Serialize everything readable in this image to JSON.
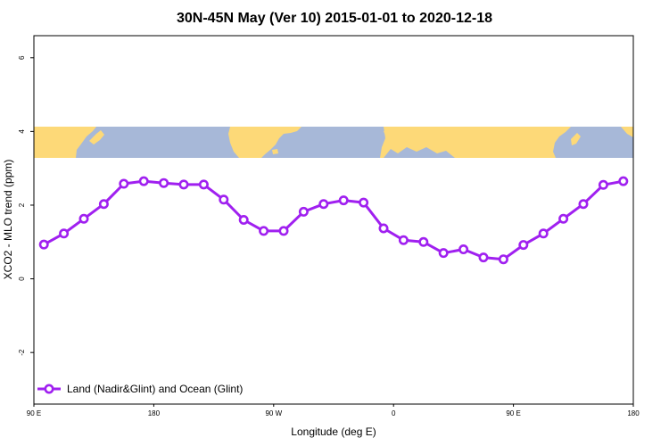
{
  "chart_data": {
    "type": "line",
    "title": "30N-45N May (Ver 10)   2015-01-01 to 2020-12-18",
    "xlabel": "Longitude (deg E)",
    "ylabel": "XCO2 - MLO trend (ppm)",
    "x_ticks": [
      {
        "value": 90,
        "label": "90 E"
      },
      {
        "value": 180,
        "label": "180"
      },
      {
        "value": 270,
        "label": "90 W"
      },
      {
        "value": 360,
        "label": "0"
      },
      {
        "value": 450,
        "label": "90 E"
      },
      {
        "value": 540,
        "label": "180"
      }
    ],
    "y_ticks": [
      -2,
      0,
      2,
      4,
      6
    ],
    "xlim": [
      90,
      540
    ],
    "ylim": [
      -3.4,
      6.6
    ],
    "grid": false,
    "legend_position": "bottom-left",
    "colors": {
      "series": "#a020f0",
      "ocean": "#a7b8d8",
      "land": "#fdd978"
    },
    "series": [
      {
        "name": "Land (Nadir&Glint) and Ocean (Glint)",
        "x": [
          97.5,
          112.5,
          127.5,
          142.5,
          157.5,
          172.5,
          187.5,
          202.5,
          217.5,
          232.5,
          247.5,
          262.5,
          277.5,
          292.5,
          307.5,
          322.5,
          337.5,
          352.5,
          367.5,
          382.5,
          397.5,
          412.5,
          427.5,
          442.5,
          457.5,
          472.5,
          487.5,
          502.5,
          517.5,
          532.5
        ],
        "values": [
          0.93,
          1.23,
          1.63,
          2.03,
          2.58,
          2.65,
          2.6,
          2.56,
          2.56,
          2.15,
          1.6,
          1.3,
          1.3,
          1.82,
          2.03,
          2.13,
          2.07,
          1.37,
          1.05,
          1.0,
          0.7,
          0.8,
          0.58,
          0.53,
          0.92,
          1.23,
          1.63,
          2.03,
          2.55,
          2.65
        ]
      }
    ]
  }
}
